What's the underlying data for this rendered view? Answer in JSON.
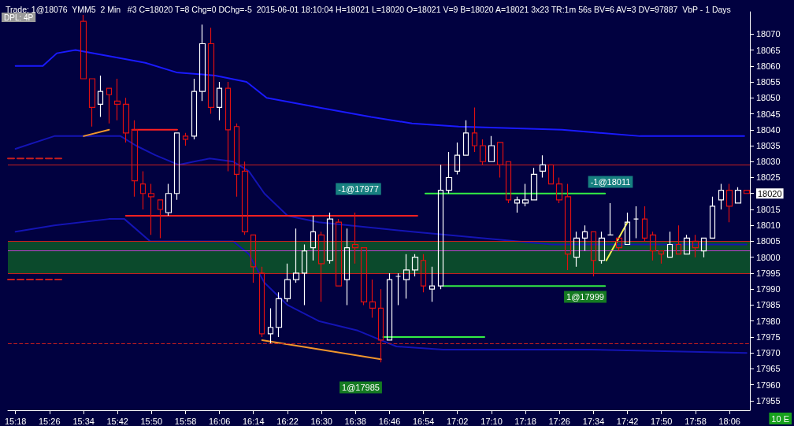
{
  "chart_data": {
    "type": "candlestick",
    "title": "Trade: 1@18076  YMM5  2 Min   #3 C=18020 T=8 Chg=0 DChg=-5  2015-06-01 18:10:04 H=18021 L=18020 O=18021 V=9 B=18020 A=18021 3x23 TR:1m 56s BV=6 AV=3 DV=97887  VbP - 1 Days",
    "subtitle": "DPL: 4P",
    "xlim": [
      15.27,
      18.18
    ],
    "xticks": [
      {
        "value": 15.3,
        "label": "15:18"
      },
      {
        "value": 15.433,
        "label": "15:26"
      },
      {
        "value": 15.567,
        "label": "15:34"
      },
      {
        "value": 15.7,
        "label": "15:42"
      },
      {
        "value": 15.833,
        "label": "15:50"
      },
      {
        "value": 15.967,
        "label": "15:58"
      },
      {
        "value": 16.1,
        "label": "16:06"
      },
      {
        "value": 16.233,
        "label": "16:14"
      },
      {
        "value": 16.367,
        "label": "16:22"
      },
      {
        "value": 16.5,
        "label": "16:30"
      },
      {
        "value": 16.633,
        "label": "16:38"
      },
      {
        "value": 16.767,
        "label": "16:46"
      },
      {
        "value": 16.9,
        "label": "16:54"
      },
      {
        "value": 17.033,
        "label": "17:02"
      },
      {
        "value": 17.167,
        "label": "17:10"
      },
      {
        "value": 17.3,
        "label": "17:18"
      },
      {
        "value": 17.433,
        "label": "17:26"
      },
      {
        "value": 17.567,
        "label": "17:34"
      },
      {
        "value": 17.7,
        "label": "17:42"
      },
      {
        "value": 17.833,
        "label": "17:50"
      },
      {
        "value": 17.967,
        "label": "17:58"
      },
      {
        "value": 18.1,
        "label": "18:06"
      }
    ],
    "ylim": [
      17952,
      18077
    ],
    "yticks": [
      17955,
      17960,
      17965,
      17970,
      17975,
      17980,
      17985,
      17990,
      17995,
      18000,
      18005,
      18010,
      18015,
      18020,
      18025,
      18030,
      18035,
      18040,
      18045,
      18050,
      18055,
      18060,
      18065,
      18070
    ],
    "bands": [
      {
        "axis": "y",
        "from": 17995,
        "to": 18005,
        "color": "#0b4a2c"
      }
    ],
    "ref_lines": [
      {
        "axis": "y",
        "value": 18029,
        "color": "#c81e1e"
      },
      {
        "axis": "y",
        "value": 18005,
        "color": "#c81e1e"
      },
      {
        "axis": "y",
        "value": 17995,
        "color": "#c81e1e"
      },
      {
        "axis": "y",
        "value": 18002,
        "color": "#c040d0"
      },
      {
        "axis": "y",
        "value": 17973,
        "color": "#c81e1e",
        "line_style": "dashed"
      }
    ],
    "series": [
      {
        "type": "line",
        "color": "#1a1aff",
        "x": [
          15.3,
          15.407,
          15.462,
          15.535,
          15.675,
          15.809,
          15.931,
          16.084,
          16.206,
          16.285,
          16.489,
          16.694,
          16.855,
          17.038,
          17.444,
          17.749,
          18.158
        ],
        "values": [
          18060,
          18060,
          18064,
          18065,
          18063,
          18061,
          18058,
          18057,
          18055,
          18050,
          18047,
          18044,
          18042,
          18041,
          18040,
          18038,
          18038
        ]
      },
      {
        "type": "line",
        "color": "#1414b4",
        "x": [
          15.3,
          15.452,
          15.574,
          15.712,
          15.773,
          15.849,
          15.94,
          16.062,
          16.154,
          16.215,
          16.276,
          16.367,
          16.489,
          16.855,
          17.404,
          18.167
        ],
        "values": [
          18034,
          18038,
          18038,
          18038,
          18035,
          18032,
          18029,
          18031,
          18030,
          18027,
          18020,
          18013,
          18011,
          18008,
          18004,
          18004
        ]
      },
      {
        "type": "line",
        "color": "#1414b4",
        "x": [
          15.3,
          15.452,
          15.666,
          15.727,
          15.828,
          15.931,
          16.154,
          16.215,
          16.276,
          16.367,
          16.489,
          16.642,
          16.794,
          16.977,
          17.557,
          18.167
        ],
        "values": [
          18008,
          18010,
          18012,
          18012,
          18005,
          18005,
          18005,
          18001,
          17992,
          17985,
          17980,
          17977,
          17972,
          17971,
          17971,
          17970
        ]
      },
      {
        "type": "line",
        "color": "#c81e1e",
        "line_style": "dashed",
        "x": [
          15.27,
          15.483
        ],
        "values": [
          18031,
          18031
        ]
      },
      {
        "type": "line",
        "color": "#c81e1e",
        "line_style": "dashed",
        "x": [
          15.27,
          15.483
        ],
        "values": [
          17993,
          17993
        ]
      },
      {
        "type": "line",
        "color": "#ff2020",
        "x": [
          15.757,
          15.934
        ],
        "values": [
          18040,
          18040
        ]
      },
      {
        "type": "line",
        "color": "#ff2020",
        "x": [
          15.733,
          16.876
        ],
        "values": [
          18013,
          18013
        ]
      },
      {
        "type": "line",
        "color": "#33ee44",
        "x": [
          16.907,
          17.612
        ],
        "values": [
          18020,
          18020
        ]
      },
      {
        "type": "line",
        "color": "#33ee44",
        "x": [
          16.977,
          17.612
        ],
        "values": [
          17991,
          17991
        ]
      },
      {
        "type": "line",
        "color": "#33ee44",
        "x": [
          16.742,
          17.139
        ],
        "values": [
          17975,
          17975
        ]
      },
      {
        "type": "line",
        "color": "#f0962c",
        "x": [
          15.567,
          15.667
        ],
        "values": [
          18038,
          18040
        ]
      },
      {
        "type": "line",
        "color": "#f0962c",
        "x": [
          16.267,
          16.733
        ],
        "values": [
          17974,
          17968
        ]
      },
      {
        "type": "line",
        "color": "#f0f050",
        "x": [
          17.617,
          17.7
        ],
        "values": [
          17999,
          18011
        ]
      },
      {
        "x": [
          15.567,
          15.6,
          15.633,
          15.667,
          15.7,
          15.733,
          15.767,
          15.8,
          15.833,
          15.867,
          15.9,
          15.933,
          15.967,
          16,
          16.033,
          16.067,
          16.1,
          16.133,
          16.167,
          16.2,
          16.233,
          16.267,
          16.3,
          16.333,
          16.367,
          16.4,
          16.433,
          16.467,
          16.5,
          16.533,
          16.567,
          16.6,
          16.633,
          16.667,
          16.7,
          16.733,
          16.767,
          16.8,
          16.833,
          16.867,
          16.9,
          16.933,
          16.967,
          17,
          17.033,
          17.067,
          17.1,
          17.133,
          17.167,
          17.2,
          17.233,
          17.267,
          17.3,
          17.333,
          17.367,
          17.4,
          17.433,
          17.467,
          17.5,
          17.533,
          17.567,
          17.6,
          17.633,
          17.667,
          17.7,
          17.733,
          17.767,
          17.8,
          17.833,
          17.867,
          17.9,
          17.933,
          17.967,
          18,
          18.033,
          18.067,
          18.1,
          18.133,
          18.167
        ],
        "ohlc": [
          [
            18074,
            18076,
            18056,
            18056
          ],
          [
            18056,
            18056,
            18041,
            18047
          ],
          [
            18048,
            18057,
            18044,
            18052
          ],
          [
            18053,
            18053,
            18042,
            18051
          ],
          [
            18049,
            18056,
            18043,
            18048
          ],
          [
            18048,
            18050,
            18036,
            18039
          ],
          [
            18040,
            18043,
            18019,
            18024
          ],
          [
            18023,
            18027,
            18015,
            18020
          ],
          [
            18020,
            18023,
            18007,
            18019
          ],
          [
            18018,
            18018,
            18006,
            18015
          ],
          [
            18014,
            18023,
            18013,
            18020
          ],
          [
            18020,
            18039,
            18018,
            18039
          ],
          [
            18038,
            18039,
            18035,
            18037
          ],
          [
            18038,
            18056,
            18037,
            18052
          ],
          [
            18052,
            18073,
            18049,
            18067
          ],
          [
            18067,
            18072,
            18045,
            18047
          ],
          [
            18047,
            18055,
            18043,
            18053
          ],
          [
            18053,
            18055,
            18027,
            18040
          ],
          [
            18041,
            18042,
            18019,
            18026
          ],
          [
            18027,
            18030,
            18007,
            18008
          ],
          [
            18007,
            18007,
            17992,
            17997
          ],
          [
            17995,
            17997,
            17975,
            17976
          ],
          [
            17976,
            17984,
            17973,
            17978
          ],
          [
            17978,
            17989,
            17975,
            17987
          ],
          [
            17987,
            17998,
            17986,
            17993
          ],
          [
            17993,
            18009,
            17992,
            17995
          ],
          [
            17995,
            18004,
            17985,
            18002
          ],
          [
            18003,
            18013,
            17999,
            18008
          ],
          [
            18007,
            18008,
            17986,
            17998
          ],
          [
            17999,
            18014,
            17998,
            18012
          ],
          [
            18011,
            18012,
            17991,
            17991
          ],
          [
            17993,
            18009,
            17985,
            18003
          ],
          [
            18004,
            18014,
            17998,
            18003
          ],
          [
            18003,
            18003,
            17985,
            17986
          ],
          [
            17986,
            17993,
            17981,
            17984
          ],
          [
            17984,
            17990,
            17967,
            17974
          ],
          [
            17974,
            17995,
            17974,
            17993
          ],
          [
            17994,
            17995,
            17985,
            17994
          ],
          [
            17993,
            18001,
            17987,
            17996
          ],
          [
            17996,
            18001,
            17994,
            18000
          ],
          [
            17999,
            18001,
            17989,
            17991
          ],
          [
            17990,
            17997,
            17986,
            17991
          ],
          [
            17991,
            18029,
            17990,
            18021
          ],
          [
            18021,
            18033,
            18020,
            18025
          ],
          [
            18027,
            18036,
            18026,
            18032
          ],
          [
            18032,
            18043,
            18032,
            18039
          ],
          [
            18039,
            18047,
            18033,
            18035
          ],
          [
            18035,
            18037,
            18029,
            18030
          ],
          [
            18030,
            18038,
            18030,
            18035
          ],
          [
            18036,
            18036,
            18025,
            18029
          ],
          [
            18030,
            18030,
            18017,
            18018
          ],
          [
            18017,
            18019,
            18014,
            18018
          ],
          [
            18017,
            18023,
            18016,
            18018
          ],
          [
            18018,
            18028,
            18018,
            18026
          ],
          [
            18027,
            18032,
            18025,
            18029
          ],
          [
            18029,
            18029,
            18023,
            18023
          ],
          [
            18023,
            18025,
            18017,
            18018
          ],
          [
            18019,
            18023,
            17996,
            18001
          ],
          [
            18000,
            18008,
            17997,
            18006
          ],
          [
            18006,
            18010,
            18002,
            18008
          ],
          [
            18008,
            18008,
            17994,
            17999
          ],
          [
            17999,
            18008,
            17998,
            18006
          ],
          [
            18007,
            18017,
            18007,
            18007
          ],
          [
            18006,
            18006,
            18002,
            18003
          ],
          [
            18004,
            18014,
            18004,
            18011
          ],
          [
            18012,
            18016,
            18006,
            18012
          ],
          [
            18012,
            18016,
            18005,
            18006
          ],
          [
            18007,
            18008,
            17999,
            18002
          ],
          [
            18002,
            18002,
            17998,
            18001
          ],
          [
            18000,
            18008,
            18000,
            18004
          ],
          [
            18004,
            18010,
            18001,
            18001
          ],
          [
            18001,
            18007,
            18001,
            18006
          ],
          [
            18005,
            18007,
            18000,
            18003
          ],
          [
            18002,
            18006,
            18000,
            18006
          ],
          [
            18006,
            18019,
            18006,
            18016
          ],
          [
            18018,
            18023,
            18015,
            18021
          ],
          [
            18021,
            18023,
            18011,
            18016
          ],
          [
            18017,
            18022,
            18017,
            18021
          ],
          [
            18021,
            18021,
            18020,
            18020
          ]
        ],
        "colors": [
          "#e01010",
          "#e01010",
          "#ffffff",
          "#e01010",
          "#e01010",
          "#e01010",
          "#e01010",
          "#e01010",
          "#e01010",
          "#e01010",
          "#ffffff",
          "#ffffff",
          "#e01010",
          "#ffffff",
          "#ffffff",
          "#e01010",
          "#ffffff",
          "#e01010",
          "#e01010",
          "#e01010",
          "#e01010",
          "#e01010",
          "#ffffff",
          "#ffffff",
          "#ffffff",
          "#ffffff",
          "#ffffff",
          "#ffffff",
          "#e01010",
          "#ffffff",
          "#e01010",
          "#ffffff",
          "#e01010",
          "#e01010",
          "#e01010",
          "#e01010",
          "#ffffff",
          "#ffffff",
          "#ffffff",
          "#ffffff",
          "#e01010",
          "#ffffff",
          "#ffffff",
          "#ffffff",
          "#ffffff",
          "#ffffff",
          "#e01010",
          "#e01010",
          "#ffffff",
          "#e01010",
          "#e01010",
          "#ffffff",
          "#ffffff",
          "#ffffff",
          "#ffffff",
          "#e01010",
          "#e01010",
          "#e01010",
          "#ffffff",
          "#ffffff",
          "#e01010",
          "#ffffff",
          "#ffffff",
          "#e01010",
          "#ffffff",
          "#ffffff",
          "#e01010",
          "#e01010",
          "#e01010",
          "#ffffff",
          "#e01010",
          "#ffffff",
          "#e01010",
          "#ffffff",
          "#ffffff",
          "#ffffff",
          "#e01010",
          "#ffffff",
          "#e01010"
        ]
      }
    ],
    "annotations": [
      "10 E",
      "-1@17977",
      "-1@18011",
      "1@17999",
      "1@17985"
    ]
  }
}
